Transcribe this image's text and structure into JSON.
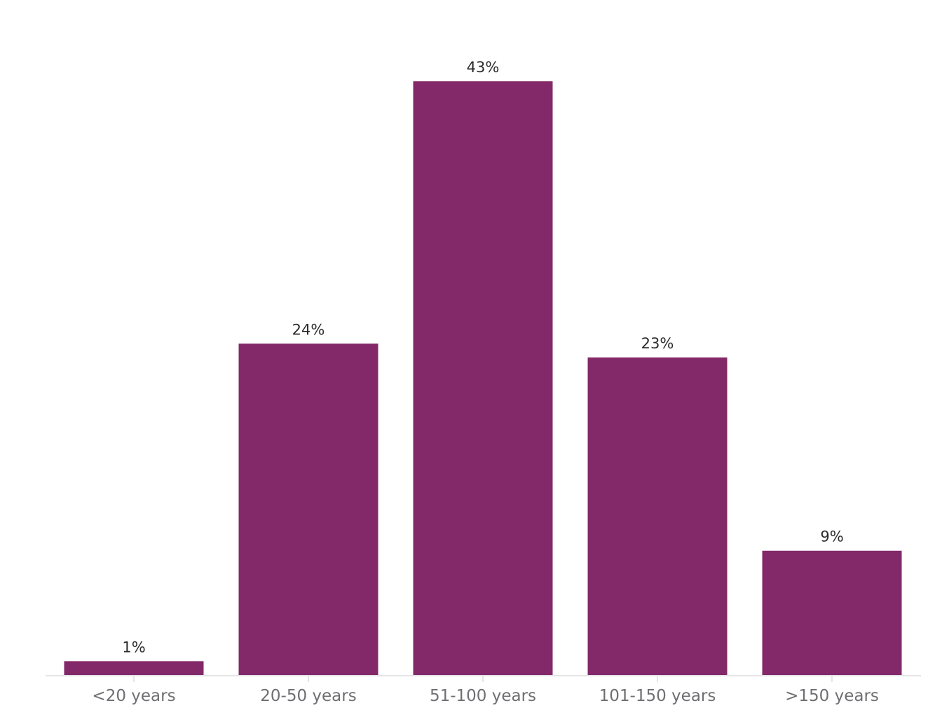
{
  "chart_data": {
    "type": "bar",
    "categories": [
      "<20 years",
      "20-50 years",
      "51-100 years",
      "101-150 years",
      ">150 years"
    ],
    "values": [
      1,
      24,
      43,
      23,
      9
    ],
    "data_labels": [
      "1%",
      "24%",
      "43%",
      "23%",
      "9%"
    ],
    "ylim": [
      0,
      43
    ],
    "grid": false,
    "legend": "none",
    "colors": {
      "bar": "#832869",
      "axis": "#e5e5e8",
      "tick": "#dcdcdf",
      "label": "#2b2b2b",
      "tick_label": "#6f6f73"
    }
  }
}
